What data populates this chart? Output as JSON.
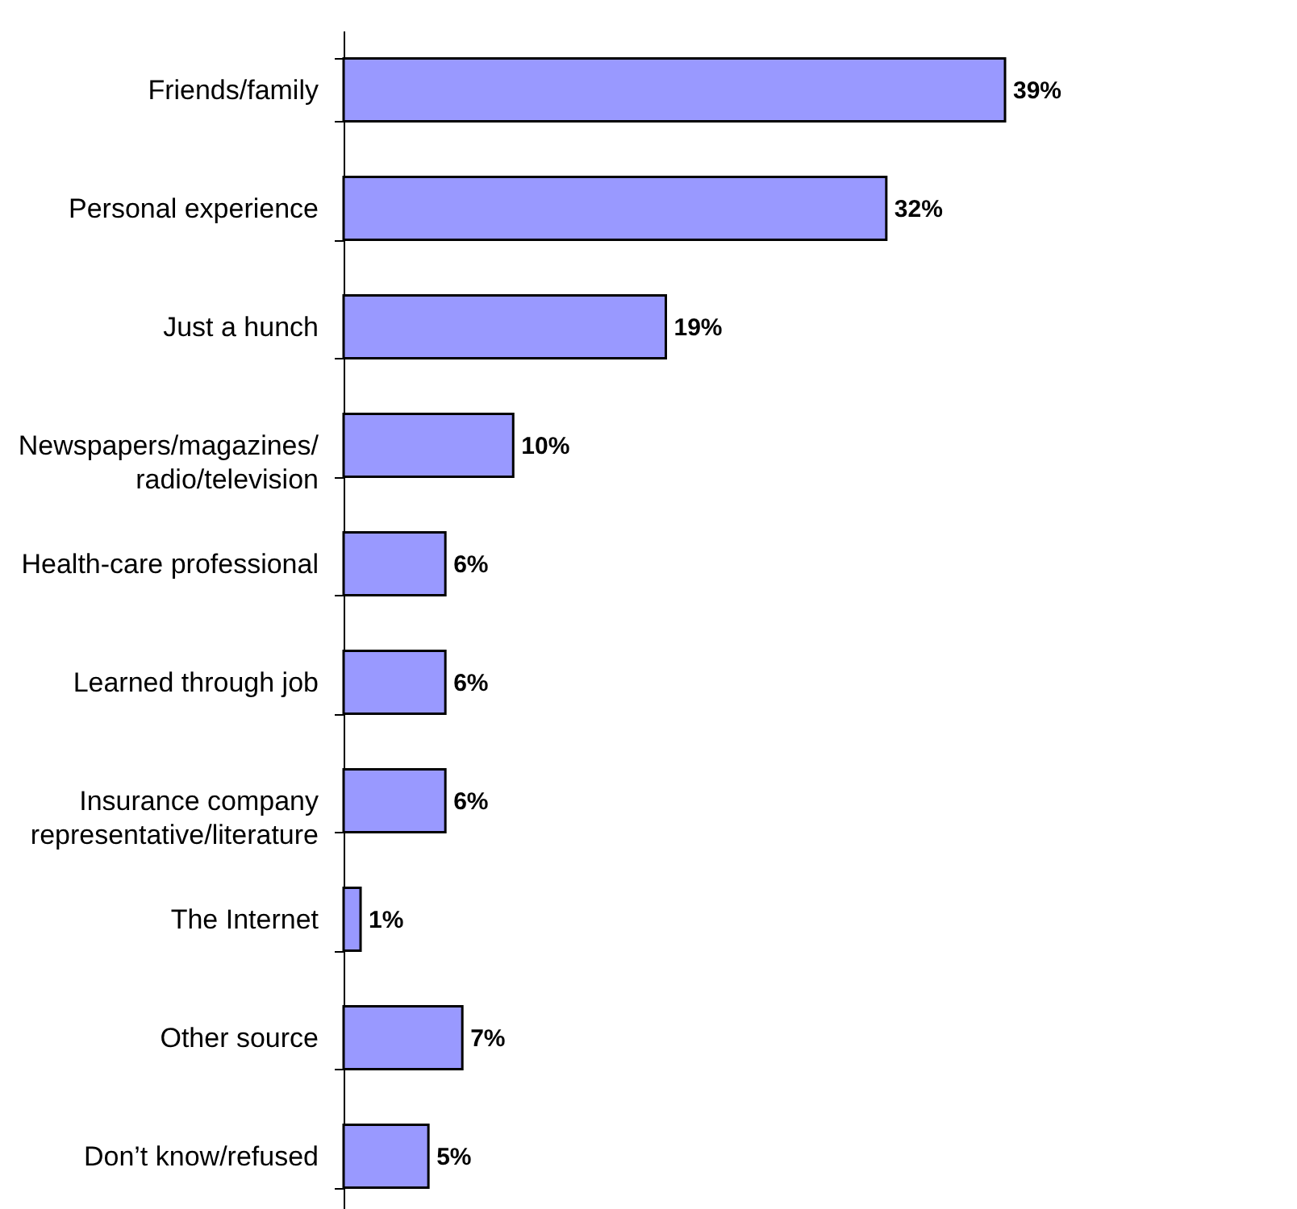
{
  "chart_data": {
    "type": "bar",
    "orientation": "horizontal",
    "categories": [
      "Friends/family",
      "Personal experience",
      "Just a hunch",
      "Newspapers/magazines/\nradio/television",
      "Health-care professional",
      "Learned through job",
      "Insurance company\nrepresentative/literature",
      "The Internet",
      "Other source",
      "Don’t know/refused"
    ],
    "values": [
      39,
      32,
      19,
      10,
      6,
      6,
      6,
      1,
      7,
      5
    ],
    "value_labels": [
      "39%",
      "32%",
      "19%",
      "10%",
      "6%",
      "6%",
      "6%",
      "1%",
      "7%",
      "5%"
    ],
    "color": "#9999ff"
  }
}
